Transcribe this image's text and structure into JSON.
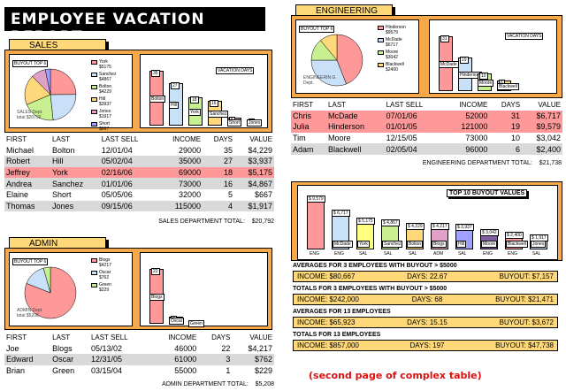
{
  "title": "EMPLOYEE VACATION REPORT",
  "headers": [
    "FIRST",
    "LAST",
    "LAST SELL",
    "INCOME",
    "DAYS",
    "VALUE"
  ],
  "sales": {
    "tab": "SALES",
    "pie_title": "BUYOUT TOP 6",
    "pie_note": "SALES Dept. total $20792",
    "legend": [
      [
        "York",
        "$5175"
      ],
      [
        "Sanchez",
        "$4867"
      ],
      [
        "Bolton",
        "$4229"
      ],
      [
        "Hill",
        "$3937"
      ],
      [
        "Jones",
        "$1917"
      ],
      [
        "Short",
        "$667"
      ]
    ],
    "bar_title": "VACATION DAYS",
    "bars": [
      [
        "Bolton",
        35
      ],
      [
        "Hill",
        27
      ],
      [
        "York",
        18
      ],
      [
        "Sanchez",
        16
      ],
      [
        "Short",
        5
      ],
      [
        "Jones",
        4
      ]
    ],
    "rows": [
      [
        "Michael",
        "Bolton",
        "12/01/04",
        "29000",
        "35",
        "$4,229"
      ],
      [
        "Robert",
        "Hill",
        "05/02/04",
        "35000",
        "27",
        "$3,937"
      ],
      [
        "Jeffrey",
        "York",
        "02/16/06",
        "69000",
        "18",
        "$5,175"
      ],
      [
        "Andrea",
        "Sanchez",
        "01/01/06",
        "73000",
        "16",
        "$4,867"
      ],
      [
        "Elaine",
        "Short",
        "05/05/06",
        "32000",
        "5",
        "$667"
      ],
      [
        "Thomas",
        "Jones",
        "09/15/06",
        "115000",
        "4",
        "$1,917"
      ]
    ],
    "foot_label": "SALES DEPARTMENT TOTAL:",
    "foot_value": "$20,792"
  },
  "admin": {
    "tab": "ADMIN",
    "pie_title": "BUYOUT TOP 6",
    "pie_note": "ADMIN Dept. total $5208",
    "legend": [
      [
        "Blogs",
        "$4217"
      ],
      [
        "Oscar",
        "$762"
      ],
      [
        "Green",
        "$229"
      ]
    ],
    "bar_title": "VACATION DAYS",
    "bars": [
      [
        "Blogs",
        22
      ],
      [
        "Oscar",
        3
      ],
      [
        "Green",
        1
      ]
    ],
    "rows": [
      [
        "Joe",
        "Blogs",
        "05/13/02",
        "46000",
        "22",
        "$4,217"
      ],
      [
        "Edward",
        "Oscar",
        "12/31/05",
        "61000",
        "3",
        "$762"
      ],
      [
        "Brian",
        "Green",
        "03/15/04",
        "55000",
        "1",
        "$229"
      ]
    ],
    "foot_label": "ADMIN DEPARTMENT TOTAL:",
    "foot_value": "$5,208"
  },
  "eng": {
    "tab": "ENGINEERING",
    "pie_title": "BUYOUT TOP 6",
    "pie_note": "ENGINEERIN G Dept.",
    "legend": [
      [
        "Hinderson",
        "$9579"
      ],
      [
        "McDade",
        "$6717"
      ],
      [
        "Moore",
        "$3042"
      ],
      [
        "Blackwell",
        "$2400"
      ]
    ],
    "bar_title": "VACATION DAYS",
    "bars": [
      [
        "McDade",
        31
      ],
      [
        "Hinderson",
        19
      ],
      [
        "Moore",
        10
      ],
      [
        "Blackwell",
        6
      ]
    ],
    "rows": [
      [
        "Chris",
        "McDade",
        "07/01/06",
        "52000",
        "31",
        "$6,717"
      ],
      [
        "Julia",
        "Hinderson",
        "01/01/05",
        "121000",
        "19",
        "$9,579"
      ],
      [
        "Tim",
        "Moore",
        "12/15/05",
        "73000",
        "10",
        "$3,042"
      ],
      [
        "Adam",
        "Blackwell",
        "02/05/04",
        "96000",
        "6",
        "$2,400"
      ]
    ],
    "foot_label": "ENGINEERING DEPARTMENT TOTAL:",
    "foot_value": "$21,738"
  },
  "top10": {
    "title": "TOP 10 BUYOUT VALUES",
    "bars": [
      [
        "$ 9,579",
        "",
        9579,
        "#ff9999",
        "ENG"
      ],
      [
        "$ 6,717",
        "McDade",
        6717,
        "#c8e0f8",
        "ENG"
      ],
      [
        "$ 5,175",
        "York",
        5175,
        "#ffff80",
        "SAL"
      ],
      [
        "$ 4,867",
        "Sanchez",
        4867,
        "#c8f090",
        "SAL"
      ],
      [
        "$ 4,229",
        "Bolton",
        4229,
        "#ffd87a",
        "SAL"
      ],
      [
        "$ 4,217",
        "Blogs",
        4217,
        "#e0a0c8",
        "ADM"
      ],
      [
        "$ 3,937",
        "Hill",
        3937,
        "#a0a0ff",
        "SAL"
      ],
      [
        "$ 3,042",
        "Moore",
        3042,
        "#8060a0",
        "ENG"
      ],
      [
        "$ 2,400",
        "Blackwell",
        2400,
        "#ff9999",
        "ENG"
      ],
      [
        "$ 1,917",
        "Jones",
        1917,
        "#c8e0f8",
        "SAL"
      ]
    ]
  },
  "summaries": [
    {
      "title": "AVERAGES FOR 3 EMPLOYEES WITH BUYOUT > $5000",
      "income": "$80,667",
      "days": "22.67",
      "buyout": "$7,157"
    },
    {
      "title": "TOTALS FOR 3 EMPLOYEES WITH BUYOUT > $5000",
      "income": "$242,000",
      "days": "68",
      "buyout": "$21,471"
    },
    {
      "title": "AVERAGES FOR 13 EMPLOYEES",
      "income": "$65,923",
      "days": "15.15",
      "buyout": "$3,672"
    },
    {
      "title": "TOTALS FOR 13 EMPLOYEES",
      "income": "$857,000",
      "days": "197",
      "buyout": "$47,738"
    }
  ],
  "labels": {
    "income": "INCOME:",
    "days": "DAYS:",
    "buyout": "BUYOUT:"
  },
  "note": "(second page of complex table)"
}
